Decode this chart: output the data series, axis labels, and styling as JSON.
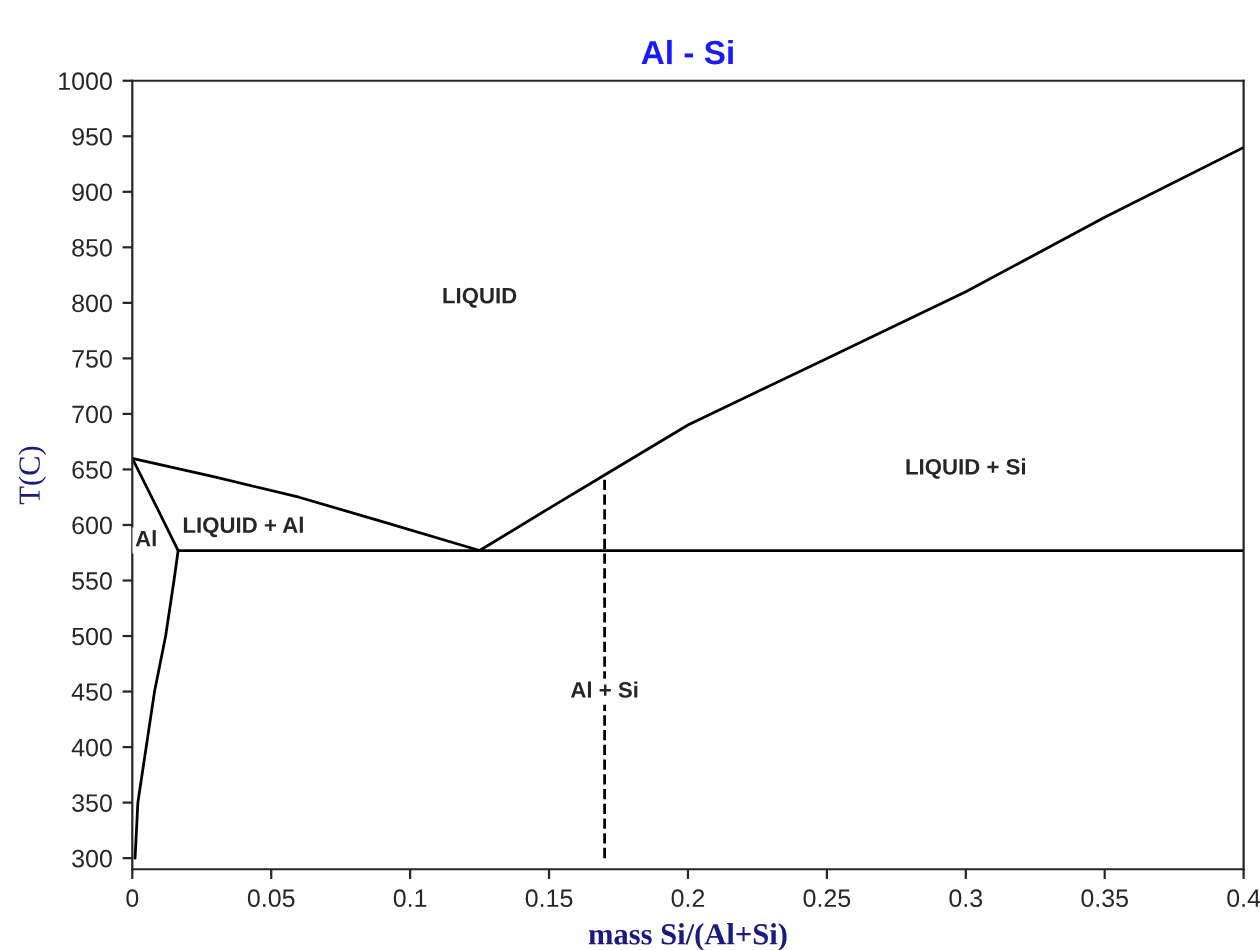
{
  "chart_data": {
    "type": "line",
    "title": "Al - Si",
    "xlabel": "mass Si/(Al+Si)",
    "ylabel": "T(C)",
    "series": [
      {
        "color": "#000000",
        "x": [
          0,
          0.03,
          0.06,
          0.09,
          0.125
        ],
        "values": [
          660,
          643,
          625,
          603,
          577
        ]
      },
      {
        "color": "#000000",
        "x": [
          0.125,
          0.15,
          0.17,
          0.2,
          0.25,
          0.3,
          0.35,
          0.4
        ],
        "values": [
          577,
          615,
          645,
          690,
          750,
          810,
          877,
          940
        ]
      },
      {
        "color": "#000000",
        "x": [
          0.0165,
          0.4
        ],
        "values": [
          577,
          577
        ]
      },
      {
        "color": "#000000",
        "x": [
          0,
          0.008,
          0.0165
        ],
        "values": [
          660,
          620,
          577
        ]
      },
      {
        "color": "#000000",
        "x": [
          0.0165,
          0.015,
          0.012,
          0.008,
          0.005,
          0.002,
          0.001
        ],
        "values": [
          577,
          550,
          500,
          450,
          400,
          350,
          300
        ]
      },
      {
        "color": "#000000",
        "x": [
          0.17,
          0.17
        ],
        "values": [
          300,
          645
        ],
        "line_style": "dashed"
      }
    ],
    "annotations": [
      "LIQUID",
      "LIQUID + Al",
      "LIQUID + Si",
      "Al",
      "Al + Si"
    ],
    "xlim": [
      0,
      0.4
    ],
    "ylim": [
      290,
      1000
    ],
    "xticks": [
      0,
      0.05,
      0.1,
      0.15,
      0.2,
      0.25,
      0.3,
      0.35,
      0.4
    ],
    "yticks": [
      300,
      350,
      400,
      450,
      500,
      550,
      600,
      650,
      700,
      750,
      800,
      850,
      900,
      950,
      1000
    ],
    "grid": false,
    "legend": false,
    "line_style": "solid",
    "marker": "none"
  }
}
